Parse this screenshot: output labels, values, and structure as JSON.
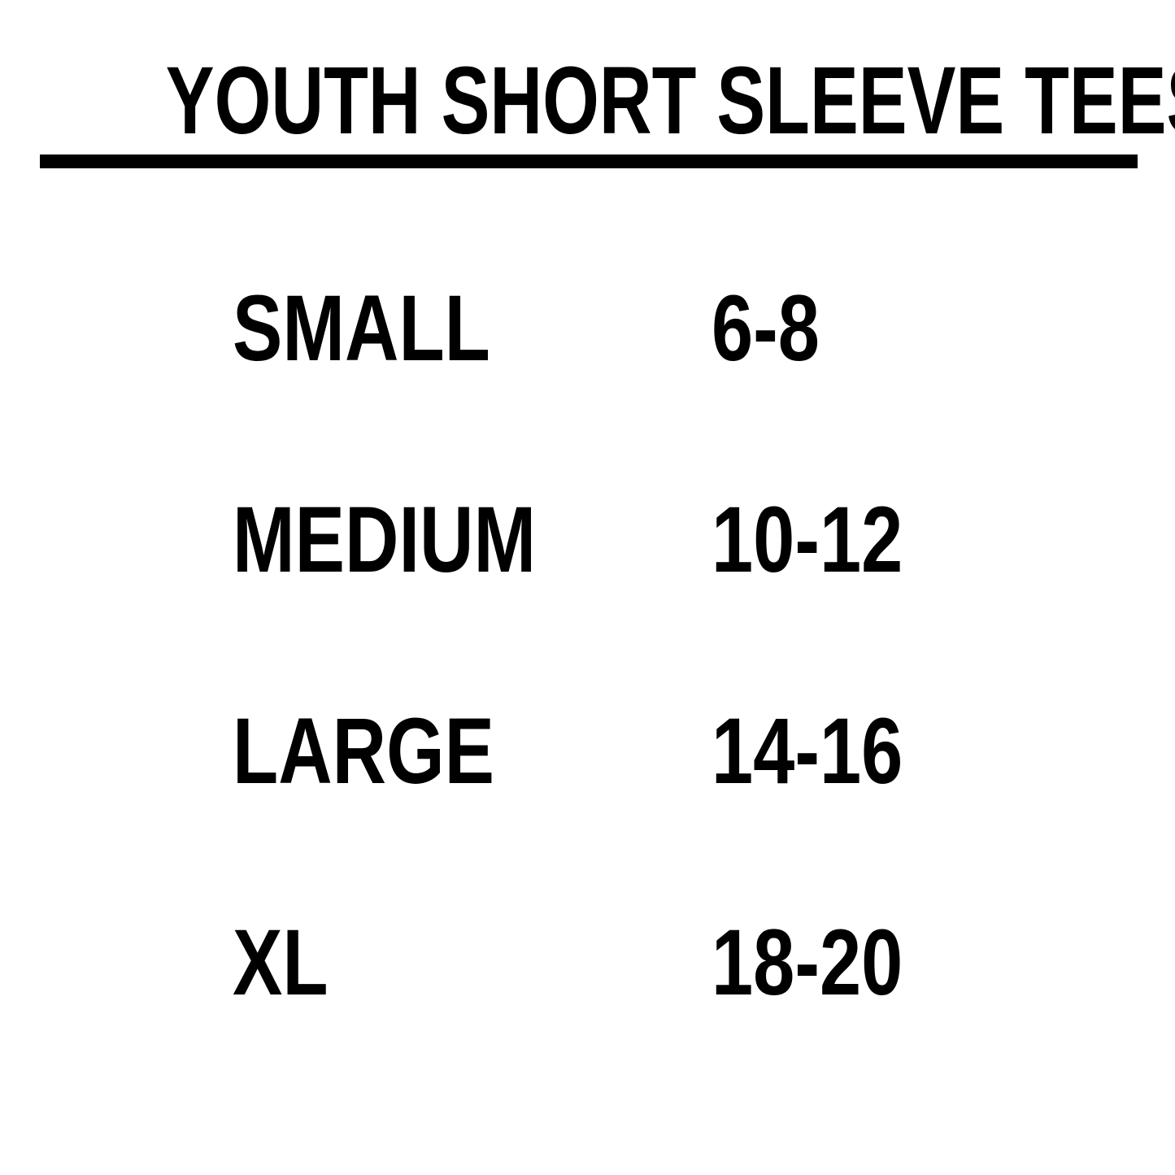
{
  "colors": {
    "foreground": "#000000",
    "background": "#ffffff"
  },
  "chart_data": {
    "type": "table",
    "title": "YOUTH SHORT SLEEVE TEES",
    "rows": [
      {
        "size": "SMALL",
        "range": "6-8"
      },
      {
        "size": "MEDIUM",
        "range": "10-12"
      },
      {
        "size": "LARGE",
        "range": "14-16"
      },
      {
        "size": "XL",
        "range": "18-20"
      }
    ]
  }
}
